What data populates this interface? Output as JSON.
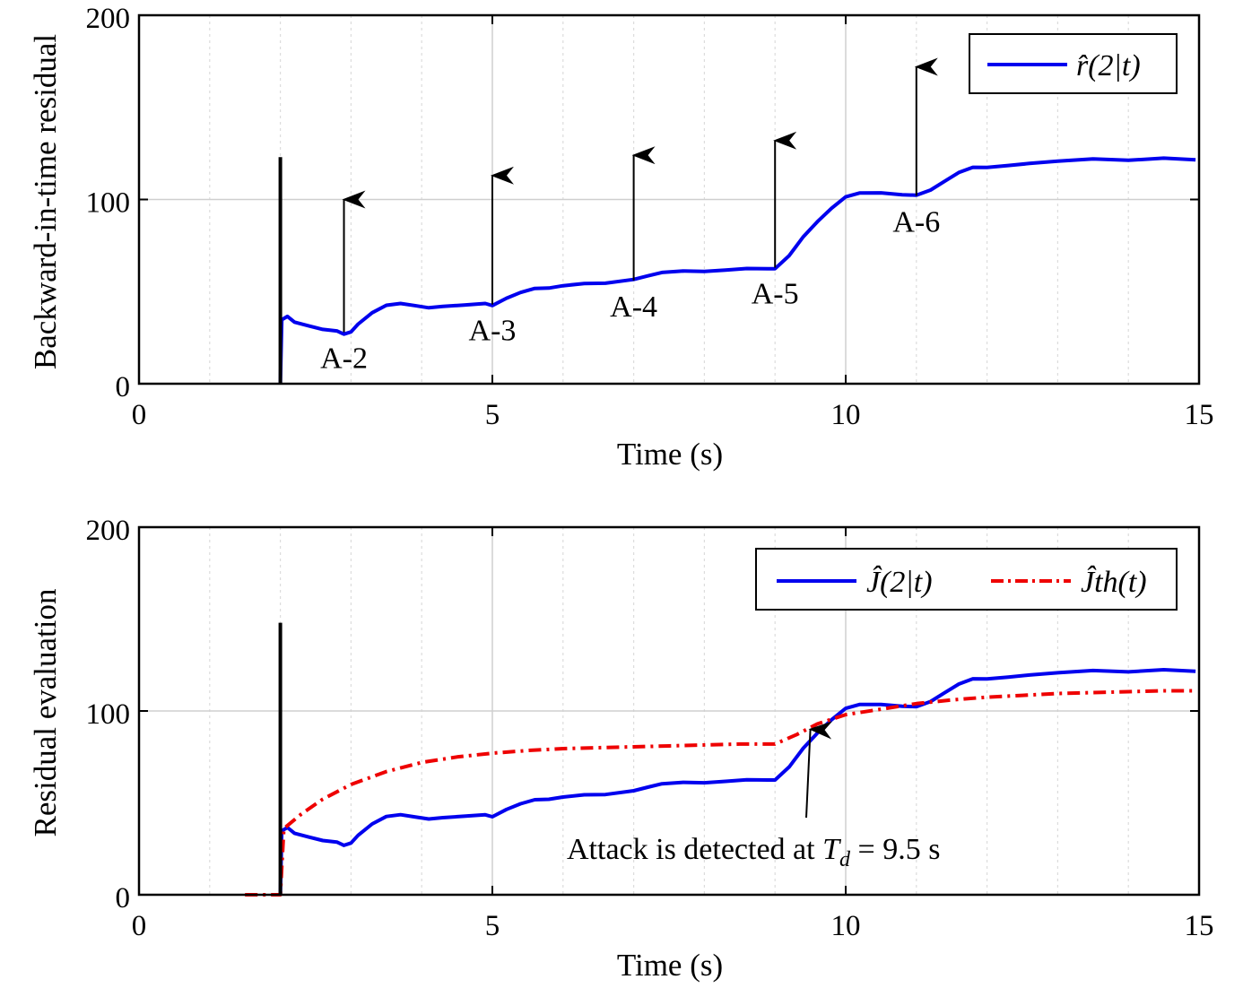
{
  "colors": {
    "residual": "#0000ee",
    "threshold": "#ee0000",
    "axes": "#000000",
    "grid": "#d9d9d9",
    "marker": "#000000"
  },
  "chart_data": [
    {
      "type": "line",
      "xlabel": "Time (s)",
      "ylabel": "Backward-in-time residual",
      "xlim": [
        0,
        15
      ],
      "ylim": [
        0,
        200
      ],
      "xticks": [
        "0",
        "5",
        "10",
        "15"
      ],
      "yticks": [
        "0",
        "100",
        "200"
      ],
      "grid": true,
      "legend_position": "top-right",
      "marker_line": {
        "x": 2,
        "y_top": 123
      },
      "series": [
        {
          "name": "r̂(2|t)",
          "style": "solid",
          "color": "#0000ee",
          "x": [
            2.0,
            2.02,
            2.1,
            2.2,
            2.4,
            2.6,
            2.8,
            2.9,
            3.0,
            3.1,
            3.3,
            3.5,
            3.7,
            3.9,
            4.1,
            4.3,
            4.6,
            4.9,
            5.0,
            5.2,
            5.4,
            5.6,
            5.8,
            6.0,
            6.3,
            6.6,
            7.0,
            7.2,
            7.4,
            7.7,
            8.0,
            8.3,
            8.6,
            8.9,
            9.0,
            9.2,
            9.4,
            9.6,
            9.8,
            10.0,
            10.2,
            10.5,
            10.8,
            11.0,
            11.2,
            11.4,
            11.6,
            11.8,
            12.0,
            12.3,
            12.6,
            13.0,
            13.5,
            14.0,
            14.5,
            14.95
          ],
          "y": [
            0,
            35,
            37,
            34,
            32,
            30,
            29,
            27,
            28,
            32,
            38,
            42,
            43,
            42,
            41,
            42,
            43,
            44,
            43,
            47,
            50,
            52,
            52,
            53,
            54,
            54,
            56,
            58,
            60,
            61,
            61,
            62,
            63,
            63,
            63,
            70,
            80,
            88,
            95,
            101,
            103,
            103,
            102,
            102,
            105,
            110,
            115,
            118,
            118,
            119,
            120,
            121,
            122,
            121,
            122,
            121
          ]
        }
      ],
      "annotations": [
        {
          "text": "A-2",
          "x": 2.9,
          "y": 28,
          "arrow_to": 100
        },
        {
          "text": "A-3",
          "x": 5.0,
          "y": 43,
          "arrow_to": 113
        },
        {
          "text": "A-4",
          "x": 7.0,
          "y": 56,
          "arrow_to": 124
        },
        {
          "text": "A-5",
          "x": 9.0,
          "y": 63,
          "arrow_to": 132
        },
        {
          "text": "A-6",
          "x": 11.0,
          "y": 102,
          "arrow_to": 172
        }
      ]
    },
    {
      "type": "line",
      "xlabel": "Time (s)",
      "ylabel": "Residual evaluation",
      "xlim": [
        0,
        15
      ],
      "ylim": [
        0,
        200
      ],
      "xticks": [
        "0",
        "5",
        "10",
        "15"
      ],
      "yticks": [
        "0",
        "100",
        "200"
      ],
      "grid": true,
      "legend_position": "top-right",
      "marker_line": {
        "x": 2,
        "y_top": 148
      },
      "series": [
        {
          "name": "Ĵ(2|t)",
          "style": "solid",
          "color": "#0000ee",
          "x": [
            2.0,
            2.02,
            2.1,
            2.2,
            2.4,
            2.6,
            2.8,
            2.9,
            3.0,
            3.1,
            3.3,
            3.5,
            3.7,
            3.9,
            4.1,
            4.3,
            4.6,
            4.9,
            5.0,
            5.2,
            5.4,
            5.6,
            5.8,
            6.0,
            6.3,
            6.6,
            7.0,
            7.2,
            7.4,
            7.7,
            8.0,
            8.3,
            8.6,
            8.9,
            9.0,
            9.2,
            9.4,
            9.6,
            9.8,
            10.0,
            10.2,
            10.5,
            10.8,
            11.0,
            11.2,
            11.4,
            11.6,
            11.8,
            12.0,
            12.3,
            12.6,
            13.0,
            13.5,
            14.0,
            14.5,
            14.95
          ],
          "y": [
            0,
            35,
            37,
            34,
            32,
            30,
            29,
            27,
            28,
            32,
            38,
            42,
            43,
            42,
            41,
            42,
            43,
            44,
            43,
            47,
            50,
            52,
            52,
            53,
            54,
            54,
            56,
            58,
            60,
            61,
            61,
            62,
            63,
            63,
            63,
            70,
            80,
            88,
            95,
            101,
            103,
            103,
            102,
            102,
            105,
            110,
            115,
            118,
            118,
            119,
            120,
            121,
            122,
            121,
            122,
            121
          ]
        },
        {
          "name": "Ĵth(t)",
          "style": "dashdot",
          "color": "#ee0000",
          "x": [
            1.5,
            2.0,
            2.05,
            2.3,
            2.6,
            3.0,
            3.5,
            4.0,
            4.5,
            5.0,
            5.5,
            6.0,
            6.5,
            7.0,
            7.5,
            8.0,
            8.5,
            9.0,
            9.3,
            9.6,
            10.0,
            10.5,
            11.0,
            11.5,
            12.0,
            12.5,
            13.0,
            13.5,
            14.0,
            14.5,
            14.95
          ],
          "y": [
            0,
            0,
            36,
            44,
            52,
            60,
            67,
            72,
            75,
            77,
            78.5,
            79.5,
            80,
            80.5,
            81,
            81.5,
            82,
            82,
            87,
            93,
            98,
            101,
            104,
            106,
            107.5,
            108.5,
            109.5,
            110,
            110.5,
            111,
            111
          ]
        }
      ],
      "annotation": {
        "text_before": "Attack is detected at ",
        "symbol": "T",
        "subscript": "d",
        "text_after": " = 9.5 s",
        "x": 9.5,
        "y": 92
      }
    }
  ]
}
